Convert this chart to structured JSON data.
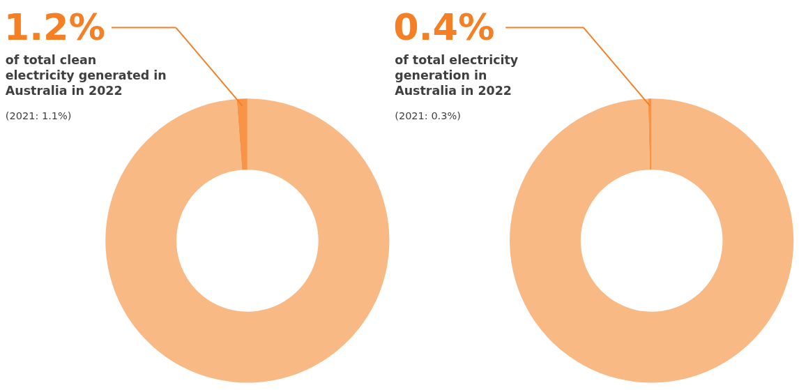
{
  "chart_data": [
    {
      "type": "donut",
      "categories": [
        null,
        null
      ],
      "values": [
        98.8,
        1.2
      ],
      "colors": [
        "#f9b985",
        "#f79448"
      ],
      "annotations": [
        "1.2%",
        "of total clean\nelectricity generated in\nAustralia in 2022",
        "(2021: 1.1%)"
      ]
    },
    {
      "type": "donut",
      "categories": [
        null,
        null
      ],
      "values": [
        99.6,
        0.4
      ],
      "colors": [
        "#f9b985",
        "#f79448"
      ],
      "annotations": [
        "0.4%",
        "of total electricity\ngeneration in\nAustralia in 2022",
        "(2021: 0.3%)"
      ]
    }
  ]
}
